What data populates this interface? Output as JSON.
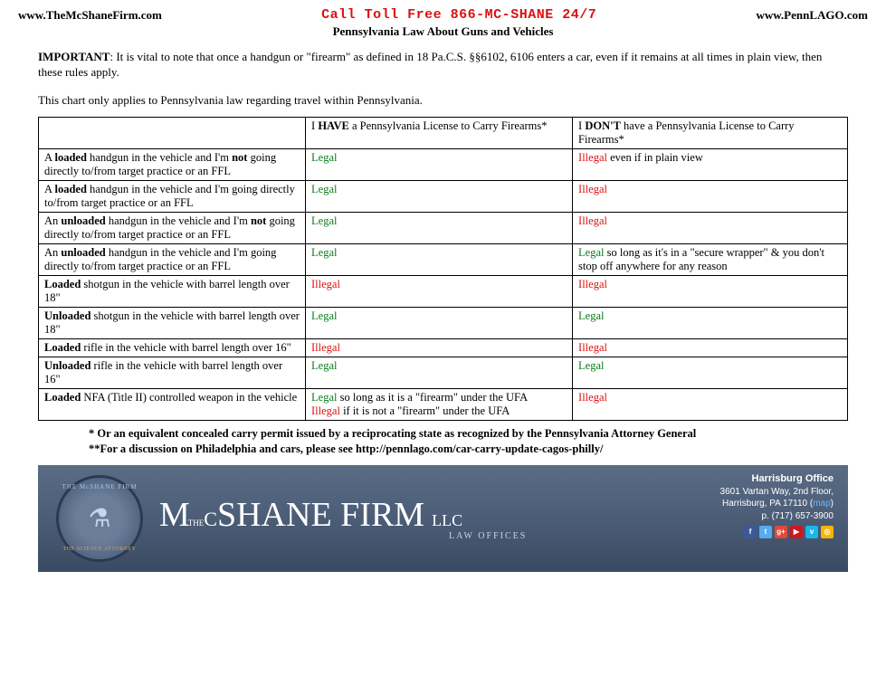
{
  "header": {
    "url1": "www.TheMcShaneFirm.com",
    "call": "Call Toll Free 866-MC-SHANE  24/7",
    "url2": "www.PennLAGO.com",
    "subtitle": "Pennsylvania Law About Guns and Vehicles"
  },
  "important_label": "IMPORTANT",
  "important_text": ": It is vital to note that once a handgun or \"firearm\" as defined in 18 Pa.C.S. §§6102, 6106 enters a car, even if it remains at all times in plain view, then these rules apply.",
  "note": "This chart only applies to Pennsylvania law regarding travel within Pennsylvania.",
  "columns": {
    "have_pre": "I ",
    "have_b": "HAVE",
    "have_post": " a Pennsylvania License to Carry Firearms*",
    "dont_pre": "I ",
    "dont_b": "DON'T",
    "dont_post": " have a Pennsylvania License to Carry Firearms*"
  },
  "rows": [
    {
      "pre": "A ",
      "b1": "loaded",
      "mid": " handgun in the vehicle and I'm ",
      "b2": "not",
      "post": " going directly to/from target practice or an FFL",
      "have": [
        {
          "cls": "legal",
          "t": "Legal"
        }
      ],
      "dont": [
        {
          "cls": "illegal",
          "t": "Illegal"
        },
        {
          "cls": "",
          "t": " even if in plain view"
        }
      ]
    },
    {
      "pre": "A ",
      "b1": "loaded",
      "mid": " handgun in the vehicle and I'm going directly to/from target practice or an FFL",
      "b2": "",
      "post": "",
      "have": [
        {
          "cls": "legal",
          "t": "Legal"
        }
      ],
      "dont": [
        {
          "cls": "illegal",
          "t": "Illegal"
        }
      ]
    },
    {
      "pre": "An ",
      "b1": "unloaded",
      "mid": " handgun in the vehicle and I'm ",
      "b2": "not",
      "post": " going directly to/from target practice or an FFL",
      "have": [
        {
          "cls": "legal",
          "t": "Legal"
        }
      ],
      "dont": [
        {
          "cls": "illegal",
          "t": "Illegal"
        }
      ]
    },
    {
      "pre": "An ",
      "b1": "unloaded",
      "mid": " handgun in the vehicle and I'm going directly to/from target practice or an FFL",
      "b2": "",
      "post": "",
      "have": [
        {
          "cls": "legal",
          "t": "Legal"
        }
      ],
      "dont": [
        {
          "cls": "legal",
          "t": "Legal"
        },
        {
          "cls": "",
          "t": " so long as it's in a \"secure wrapper\" & you don't stop off anywhere for any reason"
        }
      ]
    },
    {
      "pre": "",
      "b1": "Loaded",
      "mid": " shotgun in the vehicle with barrel length over 18\"",
      "b2": "",
      "post": "",
      "have": [
        {
          "cls": "illegal",
          "t": "Illegal"
        }
      ],
      "dont": [
        {
          "cls": "illegal",
          "t": "Illegal"
        }
      ]
    },
    {
      "pre": "",
      "b1": "Unloaded",
      "mid": " shotgun in the vehicle with barrel length over 18\"",
      "b2": "",
      "post": "",
      "have": [
        {
          "cls": "legal",
          "t": "Legal"
        }
      ],
      "dont": [
        {
          "cls": "legal",
          "t": "Legal"
        }
      ]
    },
    {
      "pre": "",
      "b1": "Loaded",
      "mid": " rifle in the vehicle with barrel length over 16\"",
      "b2": "",
      "post": "",
      "have": [
        {
          "cls": "illegal",
          "t": "Illegal"
        }
      ],
      "dont": [
        {
          "cls": "illegal",
          "t": "Illegal"
        }
      ]
    },
    {
      "pre": "",
      "b1": "Unloaded",
      "mid": " rifle in the vehicle with barrel length over 16\"",
      "b2": "",
      "post": "",
      "have": [
        {
          "cls": "legal",
          "t": "Legal"
        }
      ],
      "dont": [
        {
          "cls": "legal",
          "t": "Legal"
        }
      ]
    },
    {
      "pre": "",
      "b1": "Loaded",
      "mid": " NFA (Title II) controlled weapon in the vehicle",
      "b2": "",
      "post": "",
      "have": [
        {
          "cls": "legal",
          "t": "Legal"
        },
        {
          "cls": "",
          "t": " so long as it is a \"firearm\" under the UFA"
        },
        {
          "cls": "",
          "t": "\n"
        },
        {
          "cls": "illegal",
          "t": "Illegal"
        },
        {
          "cls": "",
          "t": " if it is not a \"firearm\" under the UFA"
        }
      ],
      "dont": [
        {
          "cls": "illegal",
          "t": "Illegal"
        }
      ]
    }
  ],
  "footnote1": "* Or an equivalent concealed carry permit issued by a reciprocating state as recognized by the Pennsylvania Attorney General",
  "footnote2": "**For a discussion on Philadelphia and cars, please see http://pennlago.com/car-carry-update-cagos-philly/",
  "banner": {
    "circle_top": "THE McSHANE FIRM",
    "circle_bot": "THE SCIENCE ATTORNEY",
    "name_mc": "M",
    "name_c": "C",
    "name_the": "THE",
    "name_rest": "SHANE FIRM",
    "name_llc": "LLC",
    "law_offices": "LAW OFFICES",
    "office_title": "Harrisburg Office",
    "addr1": "3601 Vartan Way, 2nd Floor,",
    "addr2_pre": "Harrisburg, PA 17110 (",
    "map": "map",
    "addr2_post": ")",
    "phone": "p. (717) 657-3900",
    "social": {
      "fb": "f",
      "tw": "t",
      "gp": "g+",
      "yt": "▶",
      "vm": "v",
      "oc": "◎"
    }
  }
}
